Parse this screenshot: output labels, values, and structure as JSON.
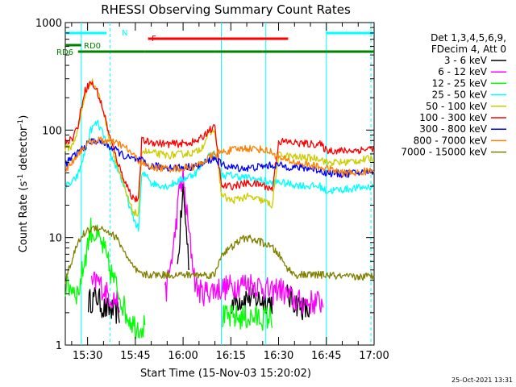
{
  "chart_data": {
    "type": "line",
    "title": "RHESSI Observing Summary Count Rates",
    "xlabel": "Start Time (15-Nov-03 15:20:02)",
    "ylabel_parts": [
      "Count Rate (s",
      "-1",
      " detector",
      "-1",
      ")"
    ],
    "yscale": "log",
    "ylim": [
      1,
      1000
    ],
    "xlim_minutes_after_15_00": [
      23,
      120
    ],
    "x_ticks": [
      {
        "t": 30,
        "label": "15:30"
      },
      {
        "t": 45,
        "label": "15:45"
      },
      {
        "t": 60,
        "label": "16:00"
      },
      {
        "t": 75,
        "label": "16:15"
      },
      {
        "t": 90,
        "label": "16:30"
      },
      {
        "t": 105,
        "label": "16:45"
      },
      {
        "t": 120,
        "label": "17:00"
      }
    ],
    "y_ticks": [
      {
        "v": 1,
        "label": "1"
      },
      {
        "v": 10,
        "label": "10"
      },
      {
        "v": 100,
        "label": "100"
      },
      {
        "v": 1000,
        "label": "1000"
      }
    ],
    "legend_header": [
      "Det 1,3,4,5,6,9,",
      "FDecim 4, Att 0"
    ],
    "legend_position": "right",
    "series": [
      {
        "name": "3 - 6 keV",
        "color": "#000000",
        "t": [
          23,
          28,
          30,
          33,
          35,
          40,
          45,
          48,
          50,
          55,
          58,
          60,
          62,
          65,
          72,
          75,
          80,
          88,
          90,
          92,
          95,
          100,
          104
        ],
        "values": [
          null,
          null,
          2.5,
          2.8,
          2.2,
          2.0,
          null,
          null,
          null,
          null,
          4,
          28,
          5,
          null,
          null,
          2.5,
          2.8,
          2.5,
          null,
          3,
          2.5,
          2,
          null
        ]
      },
      {
        "name": "6 - 12 keV",
        "color": "#ff00ff",
        "t": [
          23,
          28,
          31,
          33,
          36,
          40,
          45,
          50,
          54,
          57,
          59,
          60,
          62,
          64,
          66,
          68,
          75,
          80,
          85,
          88,
          90,
          92,
          96,
          100,
          104,
          108
        ],
        "values": [
          null,
          null,
          3.5,
          4.0,
          3.0,
          2.5,
          null,
          null,
          2.5,
          8,
          30,
          35,
          10,
          3.5,
          3.0,
          3.2,
          3.5,
          3.8,
          3.5,
          3.0,
          3.5,
          3.0,
          2.5,
          2.5,
          2.5,
          null
        ]
      },
      {
        "name": "12 - 25 keV",
        "color": "#00ff00",
        "t": [
          23,
          25,
          27,
          29,
          31,
          33,
          35,
          37,
          40,
          42,
          45,
          48,
          50,
          56,
          60,
          65,
          70,
          72,
          75,
          80,
          85,
          88,
          90,
          92,
          95,
          100,
          104
        ],
        "values": [
          3.5,
          3.5,
          3.0,
          6,
          12,
          10,
          8,
          5,
          3,
          2,
          1.5,
          1.5,
          null,
          null,
          null,
          null,
          null,
          1.8,
          1.8,
          1.8,
          1.8,
          1.8,
          null,
          null,
          null,
          null,
          null
        ]
      },
      {
        "name": "25 - 50 keV",
        "color": "#00ffff",
        "t": [
          23,
          25,
          27,
          29,
          31,
          33,
          35,
          37,
          40,
          42,
          44,
          46,
          47,
          49,
          50,
          55,
          60,
          64,
          66,
          68,
          70,
          72,
          75,
          80,
          85,
          88,
          90,
          92,
          95,
          100,
          103,
          105,
          110,
          115,
          120
        ],
        "values": [
          30,
          32,
          38,
          60,
          100,
          118,
          90,
          60,
          40,
          26,
          16,
          12,
          38,
          38,
          32,
          30,
          35,
          40,
          48,
          58,
          60,
          38,
          38,
          36,
          34,
          32,
          33,
          32,
          31,
          30,
          30,
          27,
          28,
          29,
          30
        ]
      },
      {
        "name": "50 - 100 keV",
        "color": "#cccc00",
        "t": [
          23,
          25,
          27,
          29,
          31,
          33,
          35,
          37,
          40,
          42,
          44,
          46,
          47,
          49,
          52,
          55,
          60,
          64,
          66,
          68,
          70,
          72,
          75,
          80,
          85,
          88,
          90,
          92,
          95,
          100,
          103,
          105,
          110,
          115,
          120
        ],
        "values": [
          68,
          70,
          100,
          200,
          290,
          240,
          150,
          80,
          40,
          26,
          18,
          16,
          65,
          62,
          60,
          58,
          60,
          62,
          70,
          92,
          100,
          25,
          22,
          24,
          22,
          20,
          58,
          58,
          56,
          55,
          55,
          50,
          50,
          52,
          55
        ]
      },
      {
        "name": "100 - 300 keV",
        "color": "#ff0000",
        "t": [
          23,
          25,
          27,
          29,
          31,
          33,
          35,
          37,
          40,
          42,
          44,
          46,
          47,
          49,
          52,
          55,
          60,
          64,
          66,
          68,
          70,
          72,
          75,
          80,
          85,
          88,
          90,
          92,
          95,
          100,
          103,
          105,
          110,
          115,
          120
        ],
        "values": [
          80,
          82,
          110,
          230,
          280,
          230,
          150,
          85,
          45,
          32,
          24,
          22,
          80,
          78,
          76,
          74,
          75,
          78,
          85,
          100,
          105,
          30,
          30,
          32,
          31,
          28,
          78,
          78,
          76,
          74,
          74,
          65,
          64,
          65,
          68
        ]
      },
      {
        "name": "300 - 800 keV",
        "color": "#0000ff",
        "t": [
          23,
          25,
          27,
          29,
          31,
          33,
          35,
          37,
          40,
          42,
          44,
          46,
          47,
          49,
          52,
          55,
          60,
          64,
          66,
          68,
          70,
          72,
          75,
          80,
          85,
          88,
          90,
          92,
          95,
          100,
          103,
          105,
          110,
          115,
          120
        ],
        "values": [
          48,
          55,
          62,
          70,
          78,
          80,
          76,
          70,
          62,
          56,
          54,
          52,
          52,
          46,
          46,
          45,
          45,
          46,
          48,
          52,
          55,
          48,
          45,
          44,
          46,
          47,
          47,
          46,
          45,
          44,
          42,
          40,
          39,
          40,
          42
        ]
      },
      {
        "name": "800 - 7000 keV",
        "color": "#ff8000",
        "t": [
          23,
          25,
          27,
          29,
          31,
          33,
          35,
          37,
          40,
          42,
          44,
          46,
          48,
          50,
          55,
          60,
          64,
          66,
          68,
          70,
          72,
          75,
          80,
          85,
          88,
          90,
          95,
          100,
          105,
          110,
          115,
          120
        ],
        "values": [
          42,
          50,
          60,
          70,
          78,
          80,
          80,
          78,
          74,
          68,
          60,
          52,
          47,
          45,
          44,
          44,
          46,
          50,
          55,
          60,
          62,
          65,
          68,
          66,
          62,
          55,
          50,
          47,
          44,
          40,
          40,
          43
        ]
      },
      {
        "name": "7000 - 15000 keV",
        "color": "#808000",
        "t": [
          23,
          25,
          27,
          29,
          31,
          33,
          35,
          37,
          39,
          41,
          43,
          45,
          47,
          50,
          55,
          60,
          65,
          70,
          72,
          75,
          78,
          80,
          82,
          85,
          88,
          90,
          92,
          95,
          100,
          105,
          110,
          115,
          120
        ],
        "values": [
          4,
          6,
          9,
          11,
          12,
          12.5,
          12,
          11,
          10,
          8,
          6,
          5,
          4.5,
          4.5,
          4.5,
          4.5,
          4.5,
          4.5,
          7,
          8,
          9.5,
          10,
          9.5,
          9,
          8,
          7,
          5.5,
          4.5,
          4.5,
          4.5,
          4.3,
          4.3,
          4.4
        ]
      }
    ],
    "flags": [
      {
        "label": "N",
        "color": "#00ffff",
        "segments": [
          [
            23,
            36
          ],
          [
            105,
            120
          ]
        ]
      },
      {
        "label": "F",
        "color": "#ff0000",
        "segments": [
          [
            49,
            93
          ]
        ]
      },
      {
        "label": "RD0",
        "color": "#008000",
        "segments": [
          [
            23,
            28
          ]
        ]
      },
      {
        "label": "RD6",
        "color": "#008000",
        "segments": [
          [
            27,
            48
          ],
          [
            48,
            70
          ],
          [
            70,
            85
          ],
          [
            85,
            120
          ]
        ]
      }
    ],
    "vlines": [
      {
        "t": 28,
        "color": "#00ffff",
        "style": "solid"
      },
      {
        "t": 37,
        "color": "#00ffff",
        "style": "dashed"
      },
      {
        "t": 72,
        "color": "#00ffff",
        "style": "solid"
      },
      {
        "t": 86,
        "color": "#00ffff",
        "style": "solid"
      },
      {
        "t": 105,
        "color": "#00ffff",
        "style": "solid"
      },
      {
        "t": 119,
        "color": "#00ffff",
        "style": "dashed"
      }
    ]
  },
  "footer": {
    "timestamp": "25-Oct-2021 13:31"
  }
}
